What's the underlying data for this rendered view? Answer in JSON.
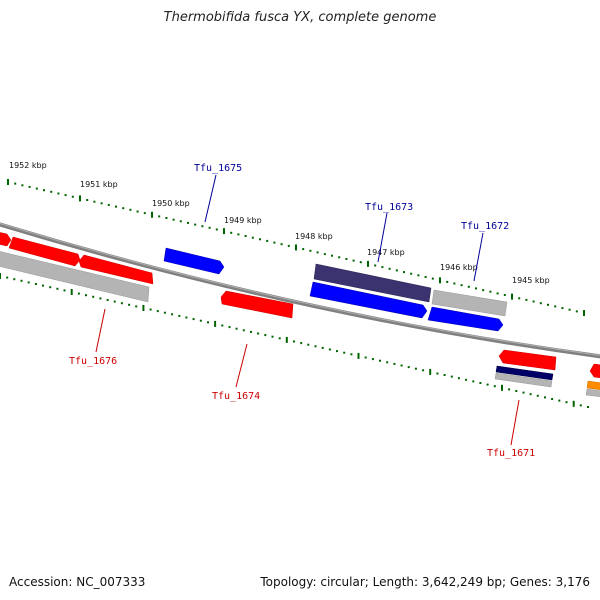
{
  "title": "Thermobifida fusca YX, complete genome",
  "footer": {
    "accession": "Accession: NC_007333",
    "stats": "Topology: circular; Length: 3,642,249 bp; Genes: 3,176"
  },
  "colors": {
    "forward_gene": "#ff0000",
    "reverse_gene": "#0000ff",
    "dark_gene": "#3a3370",
    "navy_gene": "#000066",
    "other_gene": "#ff8c00",
    "neutral_gene": "#b4b4b4",
    "backbone": "#808080",
    "tick": "#006400",
    "label_forward": "#cc0000",
    "label_reverse": "#000099"
  },
  "scale": {
    "kbp_labels": [
      "1952 kbp",
      "1951 kbp",
      "1950 kbp",
      "1949 kbp",
      "1948 kbp",
      "1947 kbp",
      "1946 kbp",
      "1945 kbp"
    ]
  },
  "gene_labels": {
    "top": [
      "Tfu_1675",
      "Tfu_1673",
      "Tfu_1672"
    ],
    "bottom": [
      "Tfu_1676",
      "Tfu_1674",
      "Tfu_1671"
    ]
  }
}
